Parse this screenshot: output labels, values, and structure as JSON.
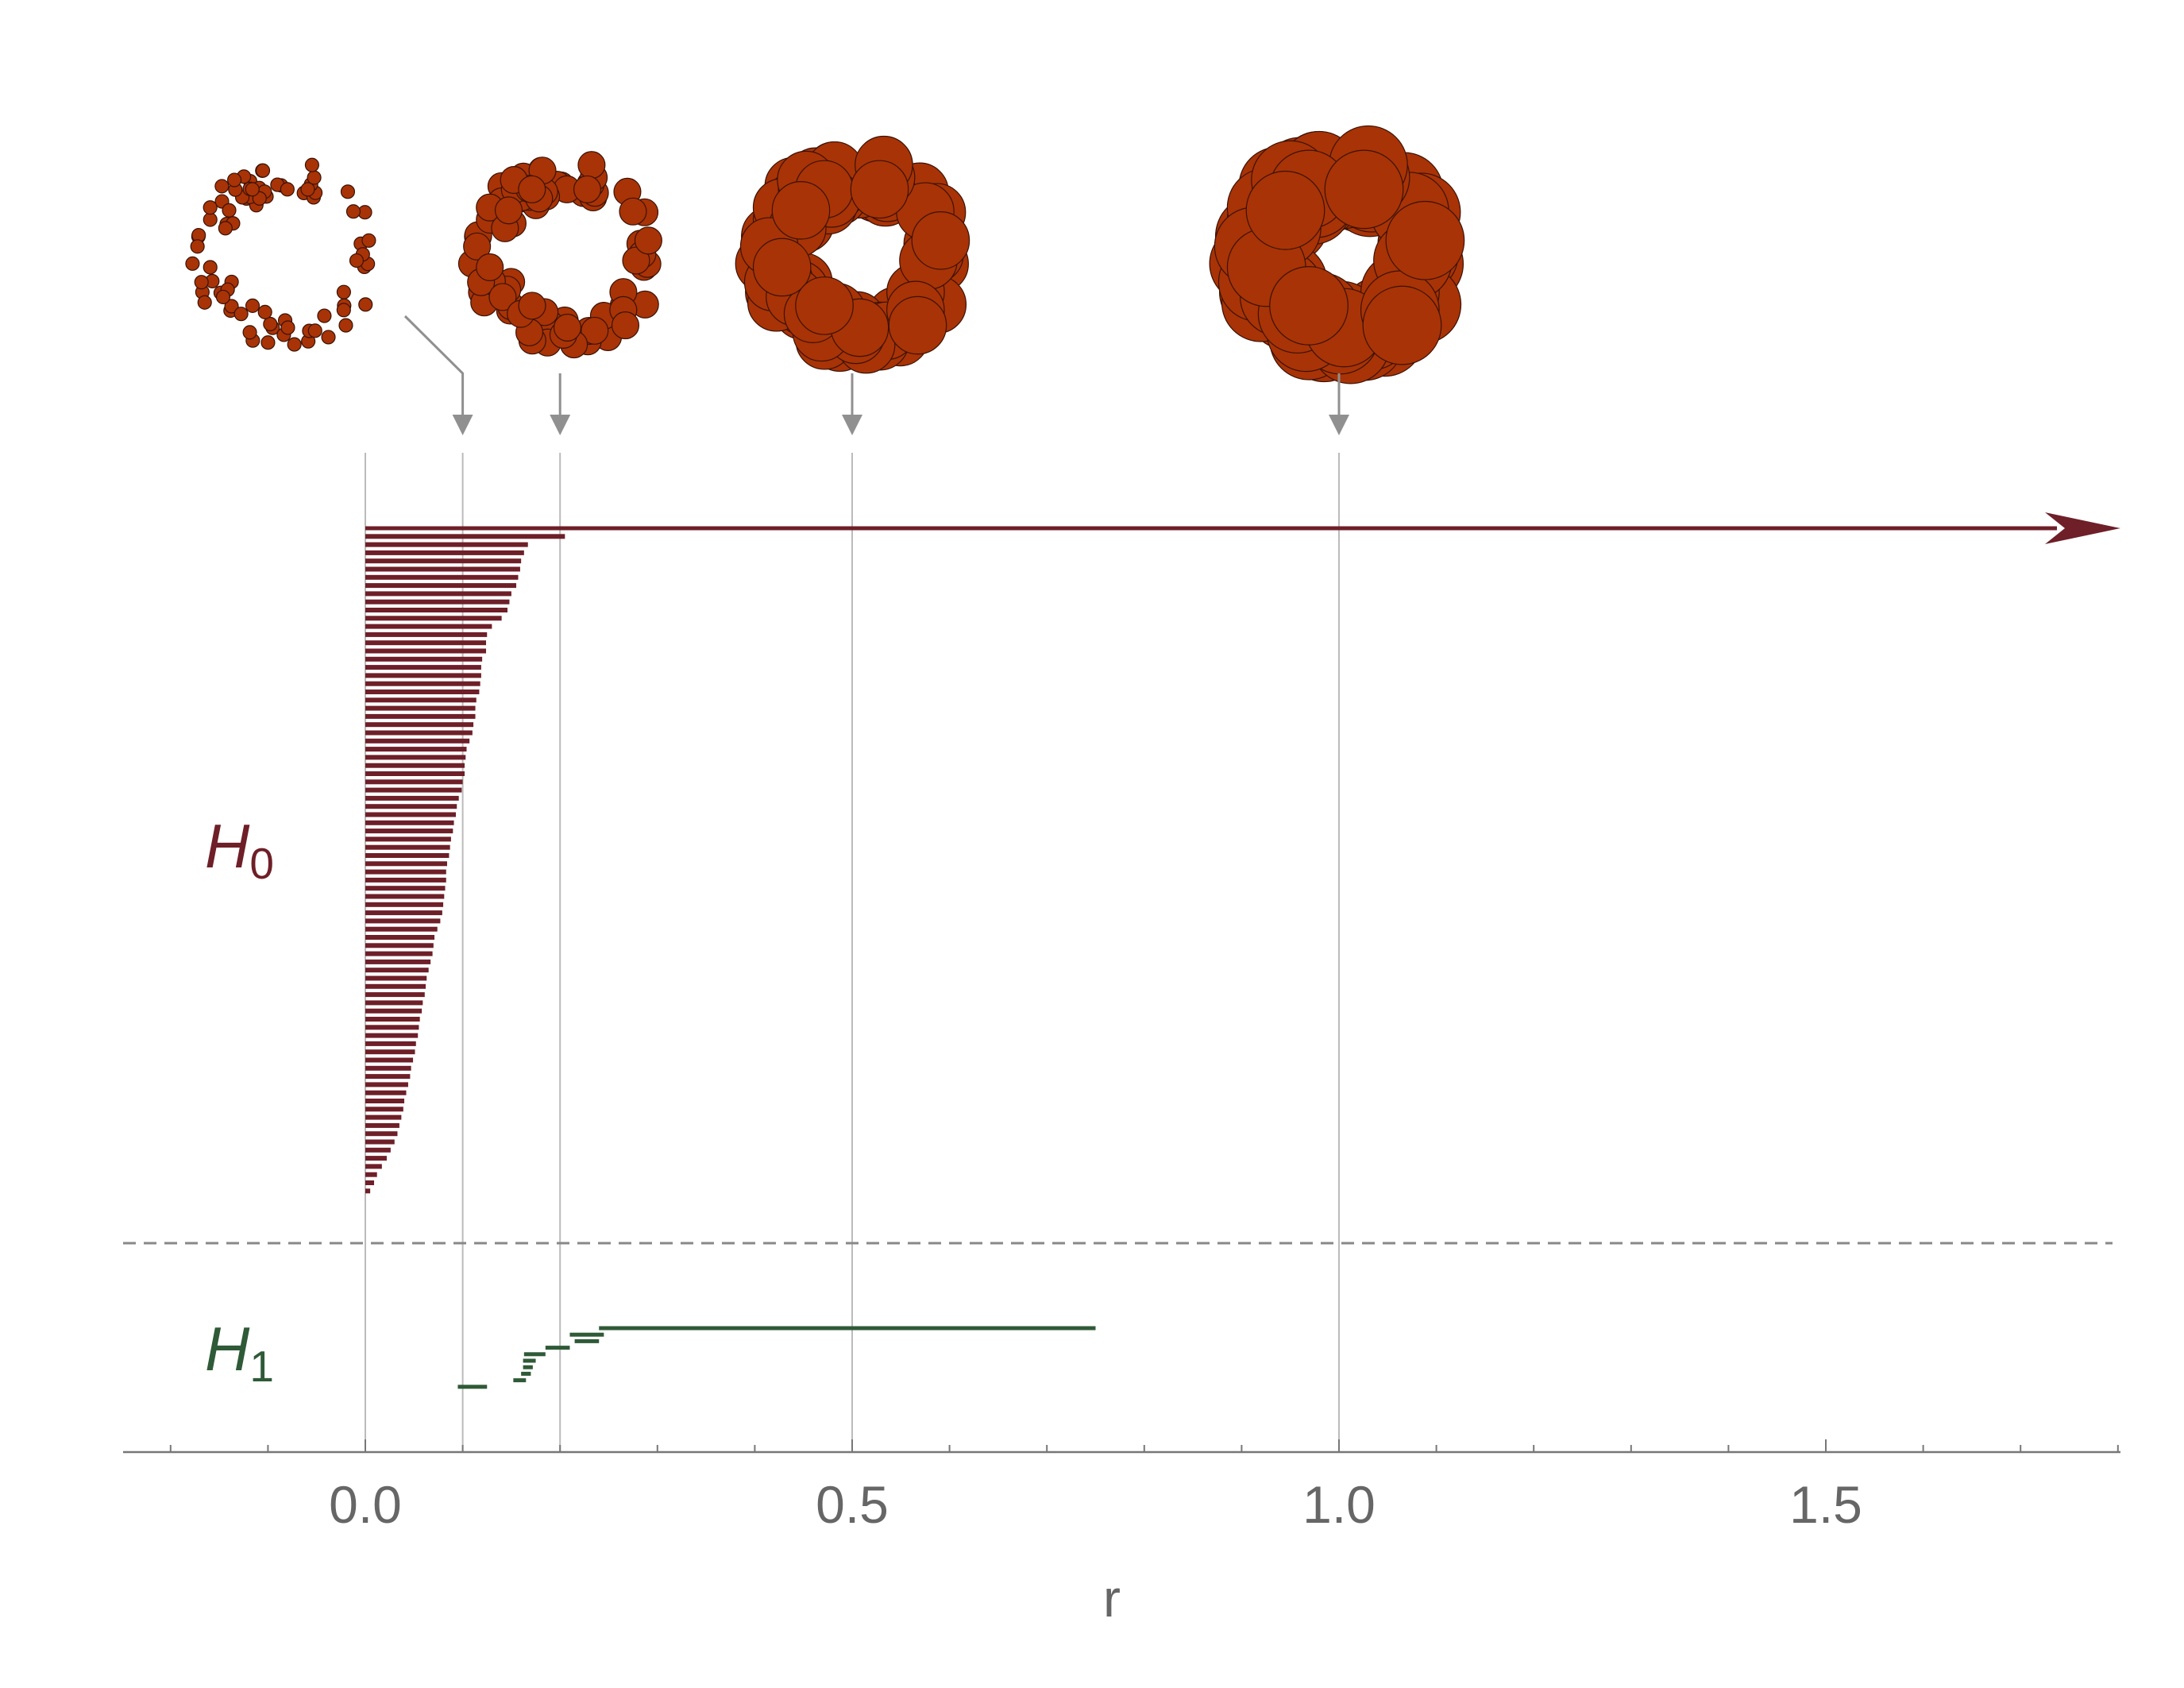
{
  "chart_data": {
    "type": "barcode",
    "xlabel": "r",
    "xlim": [
      -0.25,
      1.8
    ],
    "xticks": [
      0.0,
      0.5,
      1.0,
      1.5
    ],
    "xtick_labels": [
      "0.0",
      "0.5",
      "1.0",
      "1.5"
    ],
    "minor_step": 0.1,
    "filtration_radii": [
      0.1,
      0.2,
      0.5,
      1.0
    ],
    "colors": {
      "H0": "#6e1f28",
      "H1": "#2f5a37",
      "balls": "#a83306",
      "guides": "#bbbbbb",
      "arrows": "#909090",
      "axis": "#777777"
    },
    "series": [
      {
        "name": "H0",
        "label_main": "H",
        "label_sub": "0",
        "infinite": [
          {
            "start": 0,
            "end": null
          }
        ],
        "bar_ends": [
          0.205,
          0.167,
          0.163,
          0.16,
          0.159,
          0.157,
          0.155,
          0.15,
          0.148,
          0.146,
          0.14,
          0.13,
          0.125,
          0.124,
          0.124,
          0.12,
          0.119,
          0.119,
          0.118,
          0.117,
          0.114,
          0.113,
          0.113,
          0.111,
          0.11,
          0.107,
          0.104,
          0.103,
          0.102,
          0.102,
          0.1,
          0.099,
          0.096,
          0.094,
          0.093,
          0.091,
          0.09,
          0.088,
          0.087,
          0.086,
          0.084,
          0.083,
          0.083,
          0.082,
          0.081,
          0.08,
          0.079,
          0.077,
          0.074,
          0.071,
          0.07,
          0.069,
          0.067,
          0.065,
          0.063,
          0.062,
          0.061,
          0.059,
          0.058,
          0.056,
          0.055,
          0.054,
          0.052,
          0.051,
          0.049,
          0.047,
          0.046,
          0.044,
          0.042,
          0.04,
          0.039,
          0.037,
          0.035,
          0.033,
          0.03,
          0.026,
          0.022,
          0.017,
          0.012,
          0.009,
          0.005
        ]
      },
      {
        "name": "H1",
        "label_main": "H",
        "label_sub": "1",
        "bars": [
          {
            "start": 0.24,
            "end": 0.75
          },
          {
            "start": 0.21,
            "end": 0.245
          },
          {
            "start": 0.215,
            "end": 0.24
          },
          {
            "start": 0.185,
            "end": 0.21
          },
          {
            "start": 0.163,
            "end": 0.185
          },
          {
            "start": 0.162,
            "end": 0.175
          },
          {
            "start": 0.162,
            "end": 0.172
          },
          {
            "start": 0.16,
            "end": 0.17
          },
          {
            "start": 0.152,
            "end": 0.165
          },
          {
            "start": 0.095,
            "end": 0.125
          }
        ]
      }
    ],
    "snapshots": [
      {
        "radius": 0.1,
        "ball_size": 0.55
      },
      {
        "radius": 0.2,
        "ball_size": 1.1
      },
      {
        "radius": 0.5,
        "ball_size": 2.35
      },
      {
        "radius": 1.0,
        "ball_size": 3.2
      }
    ]
  }
}
